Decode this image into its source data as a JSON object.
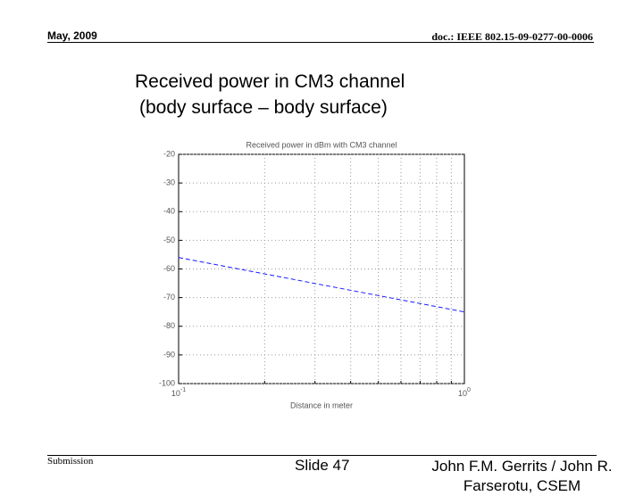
{
  "header": {
    "date": "May, 2009",
    "doc": "doc.: IEEE 802.15-09-0277-00-0006"
  },
  "slide_title": [
    "Received power in CM3 channel",
    "(body surface – body surface)"
  ],
  "chart_data": {
    "type": "line",
    "title": "Received power in dBm with CM3 channel",
    "x_label": "Distance in meter",
    "log_x": true,
    "x": [
      0.1,
      1
    ],
    "series": [
      {
        "name": "CM3",
        "color": "#1a1aff",
        "dashed": true,
        "values": [
          -56,
          -75
        ]
      }
    ],
    "xlim": [
      0.1,
      1
    ],
    "xticks": [
      {
        "value": 0.1,
        "label": "10",
        "exponent": "-1"
      },
      {
        "value": 1,
        "label": "10",
        "exponent": "0"
      }
    ],
    "xgrid_minor": [
      0.2,
      0.3,
      0.4,
      0.5,
      0.6,
      0.7,
      0.8,
      0.9
    ],
    "ylim": [
      -100,
      -20
    ],
    "yticks": [
      -20,
      -30,
      -40,
      -50,
      -60,
      -70,
      -80,
      -90,
      -100
    ],
    "grid": true
  },
  "footer": {
    "left": "Submission",
    "center": "Slide 47",
    "right": "John F.M. Gerrits / John R. Farserotu, CSEM"
  }
}
